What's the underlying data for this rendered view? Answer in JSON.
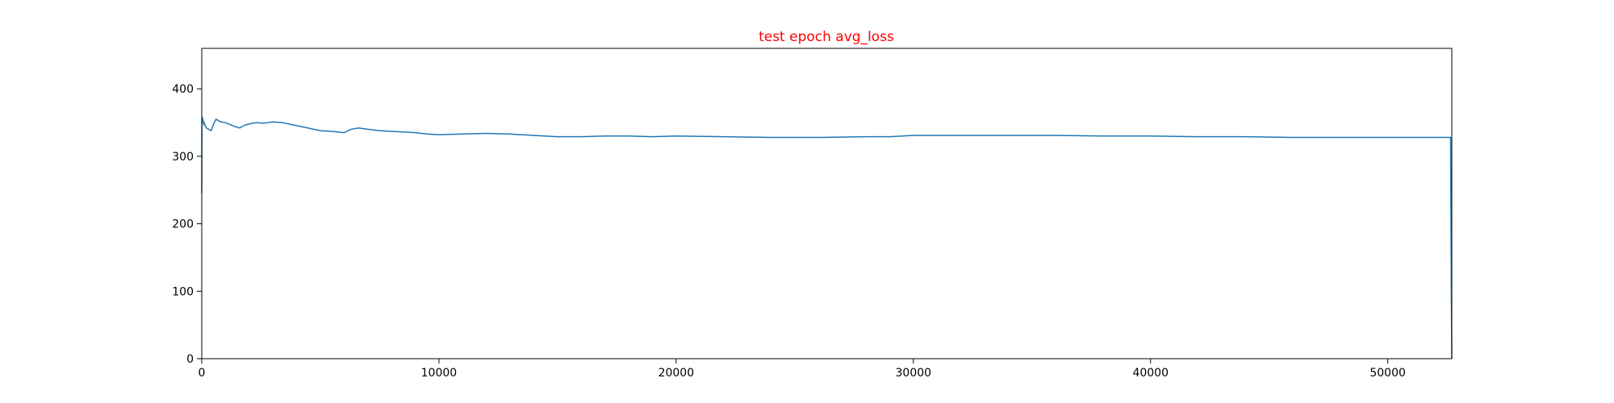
{
  "chart_data": {
    "type": "line",
    "title": "test epoch avg_loss",
    "title_color": "#ff0000",
    "xlabel": "",
    "ylabel": "",
    "xlim": [
      0,
      52700
    ],
    "ylim": [
      0,
      460
    ],
    "x_ticks": [
      0,
      10000,
      20000,
      30000,
      40000,
      50000
    ],
    "y_ticks": [
      0,
      100,
      200,
      300,
      400
    ],
    "grid": false,
    "legend": "none",
    "series": [
      {
        "color": "#1f77b4",
        "x": [
          0,
          5,
          10,
          20,
          40,
          60,
          80,
          100,
          150,
          200,
          300,
          400,
          500,
          600,
          700,
          800,
          1000,
          1200,
          1400,
          1600,
          1800,
          2000,
          2300,
          2600,
          3000,
          3400,
          3800,
          4200,
          4600,
          5000,
          5500,
          6000,
          6300,
          6600,
          7000,
          7500,
          8000,
          8500,
          9000,
          9500,
          10000,
          11000,
          12000,
          13000,
          14000,
          15000,
          16000,
          17000,
          18000,
          19000,
          20000,
          22000,
          24000,
          26000,
          28000,
          29000,
          30000,
          32000,
          34000,
          36000,
          38000,
          40000,
          42000,
          44000,
          46000,
          48000,
          50000,
          52000,
          52650,
          52680,
          52700
        ],
        "y": [
          245,
          320,
          355,
          358,
          356,
          352,
          348,
          350,
          345,
          342,
          340,
          338,
          348,
          355,
          353,
          351,
          350,
          347,
          344,
          342,
          346,
          348,
          350,
          349,
          351,
          350,
          347,
          344,
          341,
          338,
          337,
          335,
          340,
          342,
          340,
          338,
          337,
          336,
          335,
          333,
          332,
          333,
          334,
          333,
          331,
          329,
          329,
          330,
          330,
          329,
          330,
          329,
          328,
          328,
          329,
          329,
          331,
          331,
          331,
          331,
          330,
          330,
          329,
          329,
          328,
          328,
          328,
          328,
          328,
          100,
          0
        ]
      }
    ]
  }
}
